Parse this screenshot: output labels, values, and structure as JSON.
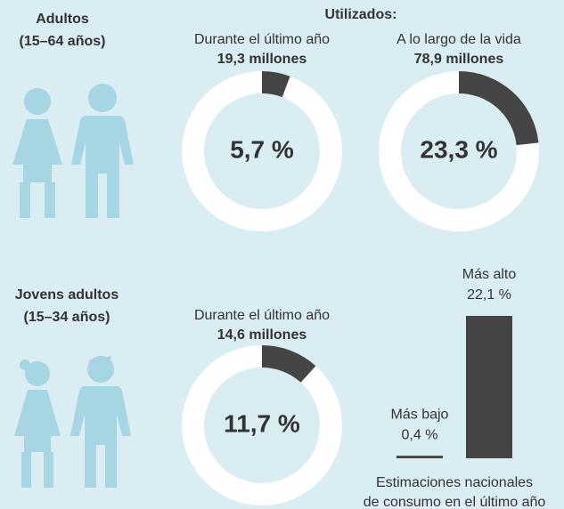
{
  "heading": "Utilizados:",
  "groups": [
    {
      "label": [
        "Adultos",
        "(15–64 años)"
      ]
    },
    {
      "label": [
        "Jovens adultos",
        "(15–34 años)"
      ]
    }
  ],
  "chart_data": [
    {
      "type": "donut",
      "title": "Durante el último año",
      "subtitle": "19,3 millones",
      "values": [
        5.7
      ],
      "value_labels": [
        "5,7 %"
      ],
      "color": "#454545"
    },
    {
      "type": "donut",
      "title": "A lo largo de la vida",
      "subtitle": "78,9 millones",
      "values": [
        23.3
      ],
      "value_labels": [
        "23,3 %"
      ],
      "color": "#454545"
    },
    {
      "type": "donut",
      "title": "Durante el último año",
      "subtitle": "14,6 millones",
      "values": [
        11.7
      ],
      "value_labels": [
        "11,7 %"
      ],
      "color": "#454545"
    },
    {
      "type": "bar",
      "categories": [
        "Más bajo",
        "Más alto"
      ],
      "values": [
        0.4,
        22.1
      ],
      "value_labels": [
        "0,4 %",
        "22,1 %"
      ],
      "ylim": [
        0,
        25
      ],
      "color": "#454545",
      "caption": [
        "Estimaciones nacionales",
        "de consumo en el último año"
      ]
    }
  ]
}
